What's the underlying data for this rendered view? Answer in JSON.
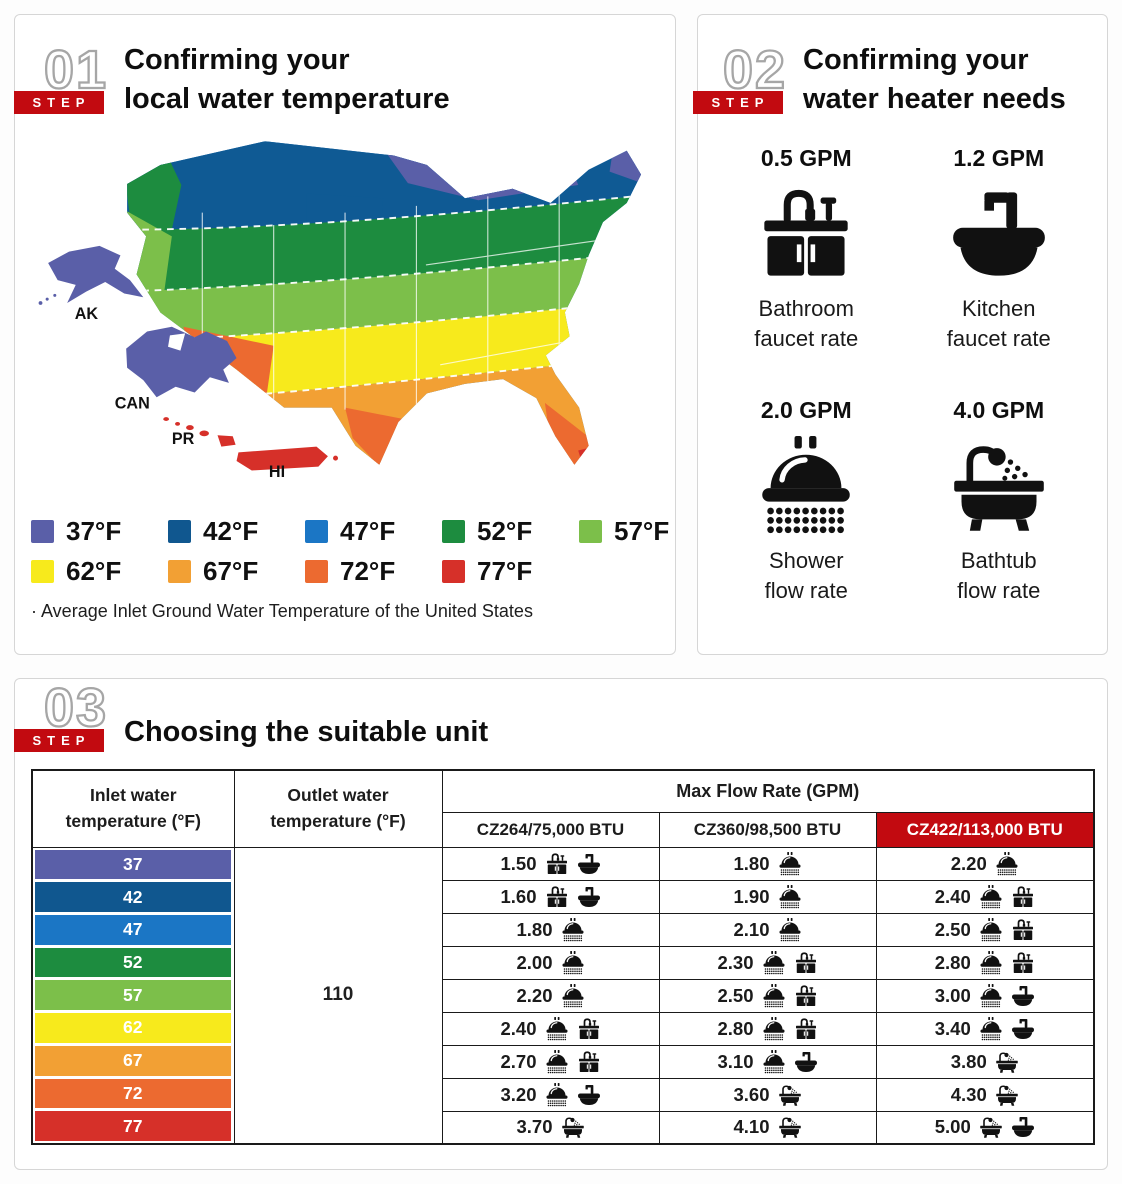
{
  "colors": {
    "accent_red": "#c20a10",
    "step_number_outline": "#a6a6a6",
    "table_border": "#1a1a1a"
  },
  "step1": {
    "number": "01",
    "step_label": "STEP",
    "title_line1": "Confirming your",
    "title_line2": "local water temperature",
    "map_labels": {
      "ak": "AK",
      "can": "CAN",
      "pr": "PR",
      "hi": "HI"
    },
    "legend": [
      {
        "label": "37°F",
        "color": "#5a5fa8"
      },
      {
        "label": "42°F",
        "color": "#10578f"
      },
      {
        "label": "47°F",
        "color": "#1b76c5"
      },
      {
        "label": "52°F",
        "color": "#1d8c3f"
      },
      {
        "label": "57°F",
        "color": "#7cbf4a"
      },
      {
        "label": "62°F",
        "color": "#f7ea1c"
      },
      {
        "label": "67°F",
        "color": "#f2a034"
      },
      {
        "label": "72°F",
        "color": "#ec6a30"
      },
      {
        "label": "77°F",
        "color": "#d63029"
      }
    ],
    "note": "· Average Inlet Ground Water Temperature of the United States"
  },
  "step2": {
    "number": "02",
    "step_label": "STEP",
    "title_line1": "Confirming your",
    "title_line2": "water heater needs",
    "items": [
      {
        "gpm": "0.5 GPM",
        "icon": "bathroom-faucet",
        "label_line1": "Bathroom",
        "label_line2": "faucet rate"
      },
      {
        "gpm": "1.2 GPM",
        "icon": "kitchen-faucet",
        "label_line1": "Kitchen",
        "label_line2": "faucet rate"
      },
      {
        "gpm": "2.0 GPM",
        "icon": "shower",
        "label_line1": "Shower",
        "label_line2": "flow rate"
      },
      {
        "gpm": "4.0 GPM",
        "icon": "bathtub",
        "label_line1": "Bathtub",
        "label_line2": "flow rate"
      }
    ]
  },
  "step3": {
    "number": "03",
    "step_label": "STEP",
    "title": "Choosing the suitable unit",
    "table": {
      "col1_header": "Inlet water temperature (°F)",
      "col2_header": "Outlet water temperature (°F)",
      "flow_header": "Max Flow Rate (GPM)",
      "models": [
        {
          "name": "CZ264/75,000 BTU",
          "highlight": false
        },
        {
          "name": "CZ360/98,500 BTU",
          "highlight": false
        },
        {
          "name": "CZ422/113,000 BTU",
          "highlight": true
        }
      ],
      "outlet_value": "110",
      "rows": [
        {
          "inlet": "37",
          "color": "#5a5fa8",
          "cells": [
            {
              "value": "1.50",
              "icons": [
                "bathroom-faucet",
                "kitchen-faucet"
              ]
            },
            {
              "value": "1.80",
              "icons": [
                "shower"
              ]
            },
            {
              "value": "2.20",
              "icons": [
                "shower"
              ]
            }
          ]
        },
        {
          "inlet": "42",
          "color": "#10578f",
          "cells": [
            {
              "value": "1.60",
              "icons": [
                "bathroom-faucet",
                "kitchen-faucet"
              ]
            },
            {
              "value": "1.90",
              "icons": [
                "shower"
              ]
            },
            {
              "value": "2.40",
              "icons": [
                "shower",
                "bathroom-faucet"
              ]
            }
          ]
        },
        {
          "inlet": "47",
          "color": "#1b76c5",
          "cells": [
            {
              "value": "1.80",
              "icons": [
                "shower"
              ]
            },
            {
              "value": "2.10",
              "icons": [
                "shower"
              ]
            },
            {
              "value": "2.50",
              "icons": [
                "shower",
                "bathroom-faucet"
              ]
            }
          ]
        },
        {
          "inlet": "52",
          "color": "#1d8c3f",
          "cells": [
            {
              "value": "2.00",
              "icons": [
                "shower"
              ]
            },
            {
              "value": "2.30",
              "icons": [
                "shower",
                "bathroom-faucet"
              ]
            },
            {
              "value": "2.80",
              "icons": [
                "shower",
                "bathroom-faucet"
              ]
            }
          ]
        },
        {
          "inlet": "57",
          "color": "#7cbf4a",
          "cells": [
            {
              "value": "2.20",
              "icons": [
                "shower"
              ]
            },
            {
              "value": "2.50",
              "icons": [
                "shower",
                "bathroom-faucet"
              ]
            },
            {
              "value": "3.00",
              "icons": [
                "shower",
                "kitchen-faucet"
              ]
            }
          ]
        },
        {
          "inlet": "62",
          "color": "#f7ea1c",
          "cells": [
            {
              "value": "2.40",
              "icons": [
                "shower",
                "bathroom-faucet"
              ]
            },
            {
              "value": "2.80",
              "icons": [
                "shower",
                "bathroom-faucet"
              ]
            },
            {
              "value": "3.40",
              "icons": [
                "shower",
                "kitchen-faucet"
              ]
            }
          ]
        },
        {
          "inlet": "67",
          "color": "#f2a034",
          "cells": [
            {
              "value": "2.70",
              "icons": [
                "shower",
                "bathroom-faucet"
              ]
            },
            {
              "value": "3.10",
              "icons": [
                "shower",
                "kitchen-faucet"
              ]
            },
            {
              "value": "3.80",
              "icons": [
                "bathtub"
              ]
            }
          ]
        },
        {
          "inlet": "72",
          "color": "#ec6a30",
          "cells": [
            {
              "value": "3.20",
              "icons": [
                "shower",
                "kitchen-faucet"
              ]
            },
            {
              "value": "3.60",
              "icons": [
                "bathtub"
              ]
            },
            {
              "value": "4.30",
              "icons": [
                "bathtub"
              ]
            }
          ]
        },
        {
          "inlet": "77",
          "color": "#d63029",
          "cells": [
            {
              "value": "3.70",
              "icons": [
                "bathtub"
              ]
            },
            {
              "value": "4.10",
              "icons": [
                "bathtub"
              ]
            },
            {
              "value": "5.00",
              "icons": [
                "bathtub",
                "kitchen-faucet"
              ]
            }
          ]
        }
      ]
    }
  }
}
